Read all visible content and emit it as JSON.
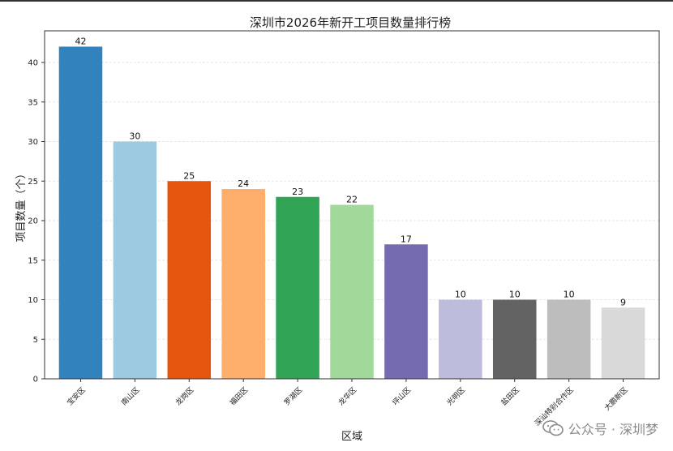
{
  "chart_data": {
    "type": "bar",
    "title": "深圳市2026年新开工项目数量排行榜",
    "xlabel": "区域",
    "ylabel": "项目数量（个）",
    "categories": [
      "宝安区",
      "南山区",
      "龙岗区",
      "福田区",
      "罗湖区",
      "龙华区",
      "坪山区",
      "光明区",
      "盐田区",
      "深汕特别合作区",
      "大鹏新区"
    ],
    "values": [
      42,
      30,
      25,
      24,
      23,
      22,
      17,
      10,
      10,
      10,
      9
    ],
    "colors": [
      "#3182bd",
      "#9ecae1",
      "#e6550d",
      "#fdae6b",
      "#31a354",
      "#a1d99b",
      "#756bb1",
      "#bcbddc",
      "#636363",
      "#bdbdbd",
      "#d9d9d9"
    ],
    "ylim": [
      0,
      44
    ],
    "yticks": [
      0,
      5,
      10,
      15,
      20,
      25,
      30,
      35,
      40
    ],
    "grid": "horizontal"
  },
  "watermark": {
    "text": "公众号 · 深圳梦",
    "icon": "wechat-icon"
  }
}
